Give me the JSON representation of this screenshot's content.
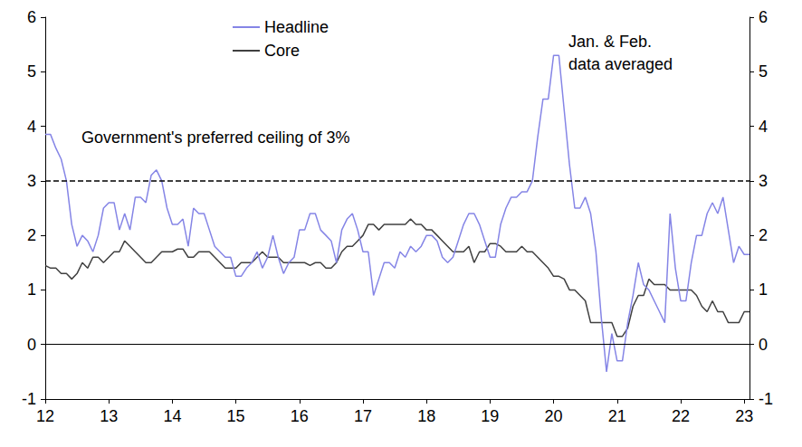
{
  "chart_data": {
    "type": "line",
    "categories": [
      "12",
      null,
      null,
      null,
      null,
      null,
      null,
      null,
      null,
      null,
      null,
      null,
      "13",
      null,
      null,
      null,
      null,
      null,
      null,
      null,
      null,
      null,
      null,
      null,
      "14",
      null,
      null,
      null,
      null,
      null,
      null,
      null,
      null,
      null,
      null,
      null,
      "15",
      null,
      null,
      null,
      null,
      null,
      null,
      null,
      null,
      null,
      null,
      null,
      "16",
      null,
      null,
      null,
      null,
      null,
      null,
      null,
      null,
      null,
      null,
      null,
      "17",
      null,
      null,
      null,
      null,
      null,
      null,
      null,
      null,
      null,
      null,
      null,
      "18",
      null,
      null,
      null,
      null,
      null,
      null,
      null,
      null,
      null,
      null,
      null,
      "19",
      null,
      null,
      null,
      null,
      null,
      null,
      null,
      null,
      null,
      null,
      null,
      "20",
      null,
      null,
      null,
      null,
      null,
      null,
      null,
      null,
      null,
      null,
      null,
      "21",
      null,
      null,
      null,
      null,
      null,
      null,
      null,
      null,
      null,
      null,
      null,
      "22",
      null,
      null,
      null,
      null,
      null,
      null,
      null,
      null,
      null,
      null,
      null,
      "23",
      null
    ],
    "series": [
      {
        "name": "Headline",
        "color": "#8585e6",
        "line_style": "solid",
        "values": [
          3.85,
          3.85,
          3.6,
          3.4,
          3.0,
          2.2,
          1.8,
          2.0,
          1.9,
          1.7,
          2.0,
          2.5,
          2.6,
          2.6,
          2.1,
          2.4,
          2.1,
          2.7,
          2.7,
          2.6,
          3.1,
          3.2,
          3.0,
          2.5,
          2.2,
          2.2,
          2.3,
          1.8,
          2.5,
          2.4,
          2.4,
          2.1,
          1.8,
          1.7,
          1.6,
          1.6,
          1.25,
          1.25,
          1.4,
          1.5,
          1.7,
          1.4,
          1.6,
          2.0,
          1.6,
          1.3,
          1.5,
          1.6,
          2.1,
          2.1,
          2.4,
          2.4,
          2.1,
          2.0,
          1.9,
          1.5,
          2.1,
          2.3,
          2.4,
          2.1,
          1.7,
          1.7,
          0.9,
          1.2,
          1.5,
          1.5,
          1.4,
          1.7,
          1.6,
          1.8,
          1.7,
          1.8,
          2.0,
          2.0,
          1.9,
          1.6,
          1.5,
          1.6,
          1.9,
          2.2,
          2.4,
          2.4,
          2.2,
          1.9,
          1.6,
          1.6,
          2.2,
          2.5,
          2.7,
          2.7,
          2.8,
          2.8,
          3.0,
          3.8,
          4.5,
          4.5,
          5.3,
          5.3,
          4.3,
          3.3,
          2.5,
          2.5,
          2.7,
          2.4,
          1.7,
          0.5,
          -0.5,
          0.2,
          -0.3,
          -0.3,
          0.4,
          0.9,
          1.5,
          1.1,
          1.0,
          0.8,
          0.6,
          0.4,
          2.4,
          1.4,
          0.8,
          0.8,
          1.5,
          2.0,
          2.0,
          2.4,
          2.6,
          2.4,
          2.7,
          2.1,
          1.5,
          1.8,
          1.65,
          1.65
        ]
      },
      {
        "name": "Core",
        "color": "#404040",
        "line_style": "solid",
        "values": [
          1.45,
          1.4,
          1.4,
          1.3,
          1.3,
          1.2,
          1.3,
          1.5,
          1.4,
          1.6,
          1.6,
          1.5,
          1.6,
          1.7,
          1.7,
          1.9,
          1.8,
          1.7,
          1.6,
          1.5,
          1.5,
          1.6,
          1.7,
          1.7,
          1.7,
          1.75,
          1.75,
          1.6,
          1.6,
          1.7,
          1.7,
          1.7,
          1.6,
          1.5,
          1.4,
          1.4,
          1.4,
          1.5,
          1.5,
          1.5,
          1.6,
          1.7,
          1.6,
          1.6,
          1.6,
          1.5,
          1.5,
          1.5,
          1.5,
          1.5,
          1.45,
          1.5,
          1.5,
          1.4,
          1.4,
          1.5,
          1.7,
          1.8,
          1.8,
          1.9,
          2.0,
          2.2,
          2.2,
          2.1,
          2.2,
          2.2,
          2.2,
          2.2,
          2.2,
          2.3,
          2.2,
          2.2,
          2.1,
          2.1,
          2.0,
          1.9,
          1.8,
          1.7,
          1.7,
          1.7,
          1.8,
          1.5,
          1.7,
          1.7,
          1.85,
          1.85,
          1.8,
          1.7,
          1.7,
          1.7,
          1.8,
          1.7,
          1.7,
          1.6,
          1.5,
          1.4,
          1.25,
          1.25,
          1.2,
          1.0,
          1.0,
          0.9,
          0.8,
          0.4,
          0.4,
          0.4,
          0.4,
          0.4,
          0.15,
          0.15,
          0.3,
          0.7,
          0.9,
          0.9,
          1.2,
          1.1,
          1.1,
          1.1,
          1.0,
          1.0,
          1.0,
          1.0,
          1.0,
          0.9,
          0.7,
          0.6,
          0.8,
          0.6,
          0.6,
          0.4,
          0.4,
          0.4,
          0.6,
          0.6
        ]
      }
    ],
    "ylim": [
      -1,
      6
    ],
    "yticks": [
      -1,
      0,
      1,
      2,
      3,
      4,
      5,
      6
    ],
    "y2lim": [
      -1,
      6
    ],
    "y2ticks": [
      -1,
      0,
      1,
      2,
      3,
      4,
      5,
      6
    ],
    "hlines": [
      {
        "value": 3,
        "line_style": "dashed"
      },
      {
        "value": 0,
        "line_style": "solid"
      }
    ],
    "annotations": [
      {
        "text": "Government's preferred ceiling of 3%"
      },
      {
        "text": "Jan. & Feb.\ndata averaged"
      }
    ],
    "legend": "top",
    "grid": false
  }
}
